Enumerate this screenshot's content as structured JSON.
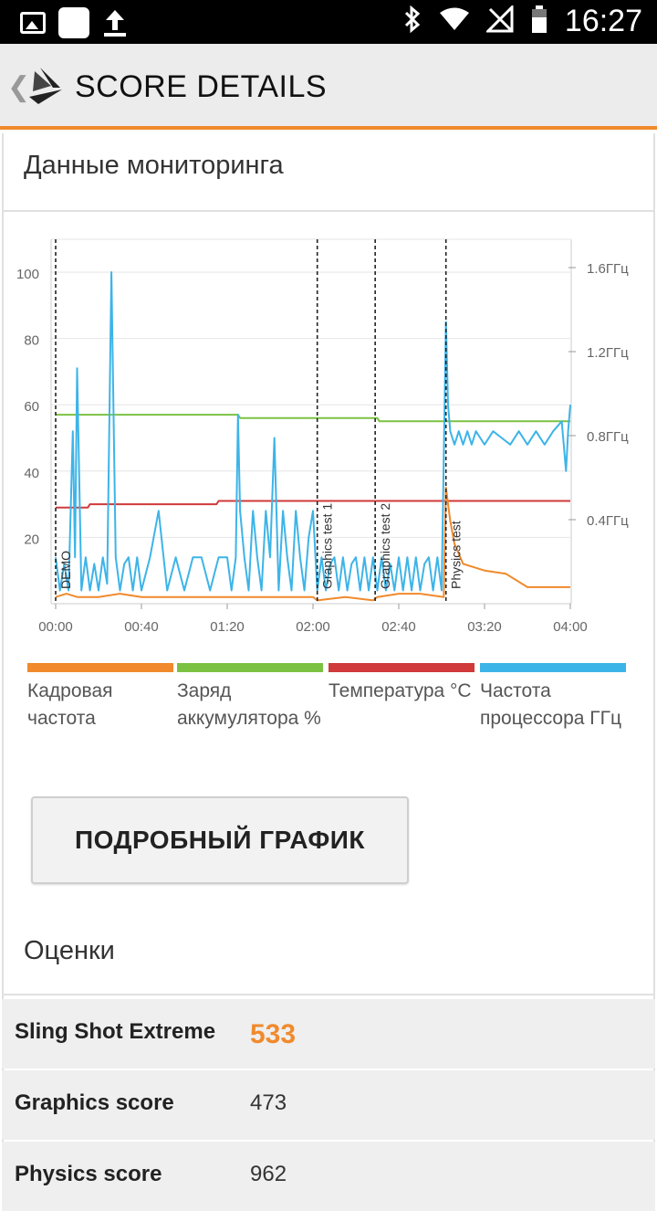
{
  "status_bar": {
    "time": "16:27",
    "icons": [
      "image-icon",
      "app-icon",
      "upload-icon",
      "bluetooth-icon",
      "wifi-icon",
      "no-sim-icon",
      "battery-icon"
    ]
  },
  "app_bar": {
    "title": "SCORE DETAILS",
    "back_icon": "chevron-left-icon",
    "logo": "3dmark-logo-icon"
  },
  "monitoring": {
    "title": "Данные мониторинга",
    "legend": [
      {
        "label": "Кадровая частота",
        "color": "#f08a2c"
      },
      {
        "label": "Заряд аккумулятора %",
        "color": "#7cc242"
      },
      {
        "label": "Температура °C",
        "color": "#d03a3a"
      },
      {
        "label": "Частота процессора ГГц",
        "color": "#3db4e8"
      }
    ]
  },
  "chart_data": {
    "type": "line",
    "x_ticks": [
      "00:00",
      "00:40",
      "01:20",
      "02:00",
      "02:40",
      "03:20",
      "04:00"
    ],
    "x_range_seconds": [
      0,
      240
    ],
    "y_left_ticks": [
      20,
      40,
      60,
      80,
      100
    ],
    "ylim_left": [
      0,
      100
    ],
    "y_right_ticks": [
      "0.4ГГц",
      "0.8ГГц",
      "1.2ГГц",
      "1.6ГГц"
    ],
    "ylim_right_ghz": [
      0,
      1.7
    ],
    "markers": [
      {
        "label": "DEMO",
        "x": 0
      },
      {
        "label": "Graphics test 1",
        "x": 122
      },
      {
        "label": "Graphics test 2",
        "x": 149
      },
      {
        "label": "Physics test",
        "x": 182
      }
    ],
    "series": [
      {
        "name": "Заряд аккумулятора %",
        "color": "#7cc242",
        "axis": "left",
        "x": [
          0,
          85,
          86,
          150,
          151,
          240
        ],
        "y": [
          57,
          57,
          56,
          56,
          55,
          55
        ]
      },
      {
        "name": "Температура °C",
        "color": "#d03a3a",
        "axis": "left",
        "x": [
          0,
          15,
          16,
          75,
          76,
          240
        ],
        "y": [
          29,
          29,
          30,
          30,
          31,
          31
        ]
      },
      {
        "name": "Кадровая частота",
        "color": "#f08a2c",
        "axis": "left",
        "x": [
          0,
          5,
          10,
          20,
          30,
          40,
          60,
          80,
          100,
          120,
          122,
          135,
          148,
          150,
          160,
          170,
          181,
          182,
          184,
          186,
          190,
          200,
          210,
          220,
          230,
          240
        ],
        "y": [
          2,
          3,
          2,
          2,
          3,
          2,
          2,
          2,
          2,
          2,
          1,
          2,
          1,
          2,
          3,
          3,
          2,
          35,
          25,
          18,
          12,
          10,
          9,
          5,
          5,
          5
        ]
      },
      {
        "name": "Частота процессора ГГц",
        "color": "#3db4e8",
        "axis": "left",
        "x": [
          0,
          2,
          4,
          6,
          8,
          9,
          10,
          12,
          14,
          16,
          18,
          20,
          22,
          24,
          26,
          28,
          30,
          32,
          34,
          36,
          38,
          40,
          44,
          48,
          52,
          56,
          60,
          64,
          68,
          72,
          76,
          80,
          82,
          84,
          85,
          86,
          88,
          90,
          92,
          94,
          96,
          98,
          100,
          102,
          104,
          106,
          108,
          110,
          112,
          114,
          116,
          118,
          120,
          122,
          124,
          126,
          128,
          130,
          132,
          134,
          136,
          138,
          140,
          142,
          144,
          146,
          148,
          150,
          152,
          154,
          156,
          158,
          160,
          162,
          164,
          166,
          168,
          170,
          172,
          174,
          176,
          178,
          180,
          182,
          183,
          184,
          186,
          188,
          190,
          192,
          194,
          196,
          198,
          200,
          204,
          208,
          212,
          216,
          220,
          224,
          228,
          232,
          236,
          238,
          239,
          240
        ],
        "y": [
          14,
          4,
          12,
          4,
          52,
          14,
          71,
          4,
          14,
          4,
          12,
          4,
          14,
          6,
          100,
          14,
          4,
          12,
          14,
          4,
          14,
          4,
          14,
          28,
          4,
          14,
          4,
          14,
          14,
          4,
          14,
          14,
          4,
          14,
          57,
          28,
          14,
          4,
          28,
          14,
          4,
          28,
          14,
          50,
          4,
          28,
          14,
          4,
          28,
          14,
          4,
          20,
          28,
          4,
          14,
          4,
          12,
          14,
          4,
          14,
          4,
          12,
          14,
          4,
          14,
          4,
          14,
          4,
          14,
          4,
          12,
          4,
          14,
          4,
          14,
          4,
          14,
          4,
          12,
          14,
          4,
          14,
          4,
          85,
          60,
          52,
          48,
          52,
          48,
          52,
          48,
          52,
          50,
          48,
          52,
          50,
          48,
          52,
          48,
          52,
          48,
          52,
          55,
          40,
          52,
          60
        ]
      }
    ]
  },
  "detail_button": {
    "label": "ПОДРОБНЫЙ ГРАФИК"
  },
  "scores": {
    "title": "Оценки",
    "rows": [
      {
        "name": "Sling Shot Extreme",
        "value": "533",
        "highlight": true
      },
      {
        "name": "Graphics score",
        "value": "473",
        "highlight": false
      },
      {
        "name": "Physics score",
        "value": "962",
        "highlight": false
      }
    ]
  }
}
